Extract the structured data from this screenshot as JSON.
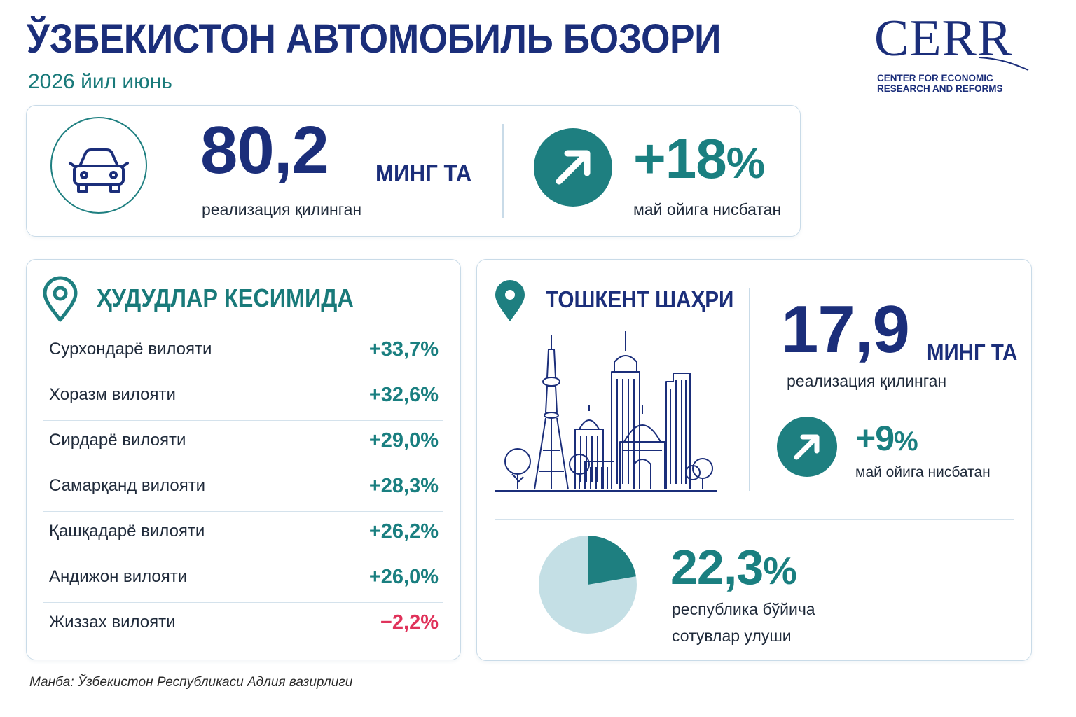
{
  "header": {
    "title": "ЎЗБЕКИСТОН АВТОМОБИЛЬ БОЗОРИ",
    "subtitle": "2026 йил июнь"
  },
  "logo": {
    "word": "CERR",
    "line1": "CENTER FOR ECONOMIC",
    "line2": "RESEARCH AND REFORMS"
  },
  "summary": {
    "total_value": "80,2",
    "total_unit": "МИНГ ТА",
    "total_caption": "реализация қилинган",
    "growth_value": "+18",
    "growth_sign": "%",
    "growth_caption": "май ойига нисбатан"
  },
  "regions": {
    "title": "ҲУДУДЛАР КЕСИМИДА",
    "rows": [
      {
        "name": "Сурхондарё вилояти",
        "value": "+33,7%",
        "negative": false
      },
      {
        "name": "Хоразм вилояти",
        "value": "+32,6%",
        "negative": false
      },
      {
        "name": "Сирдарё вилояти",
        "value": "+29,0%",
        "negative": false
      },
      {
        "name": "Самарқанд вилояти",
        "value": "+28,3%",
        "negative": false
      },
      {
        "name": "Қашқадарё вилояти",
        "value": "+26,2%",
        "negative": false
      },
      {
        "name": "Андижон вилояти",
        "value": "+26,0%",
        "negative": false
      },
      {
        "name": "Жиззах вилояти",
        "value": "−2,2%",
        "negative": true
      }
    ]
  },
  "tashkent": {
    "title": "ТОШКЕНТ ШАҲРИ",
    "sales_value": "17,9",
    "sales_unit": "МИНГ ТА",
    "sales_caption": "реализация қилинган",
    "growth_value": "+9",
    "growth_sign": "%",
    "growth_caption": "май ойига нисбатан",
    "share_value": "22,3",
    "share_sign": "%",
    "share_caption_1": "республика бўйича",
    "share_caption_2": "сотувлар улуши",
    "share_fraction": 0.223,
    "colors": {
      "share": "#1e7f80",
      "rest": "#c4dfe5"
    }
  },
  "source": "Манба: Ўзбекистон Республикаси Адлия вазирлиги",
  "colors": {
    "navy": "#1b2e7a",
    "teal": "#1e7f80",
    "negative": "#e0325a"
  },
  "icons": [
    "car-icon",
    "arrow-up-right-icon",
    "location-pin-icon",
    "city-skyline-icon",
    "pie-chart-icon"
  ]
}
